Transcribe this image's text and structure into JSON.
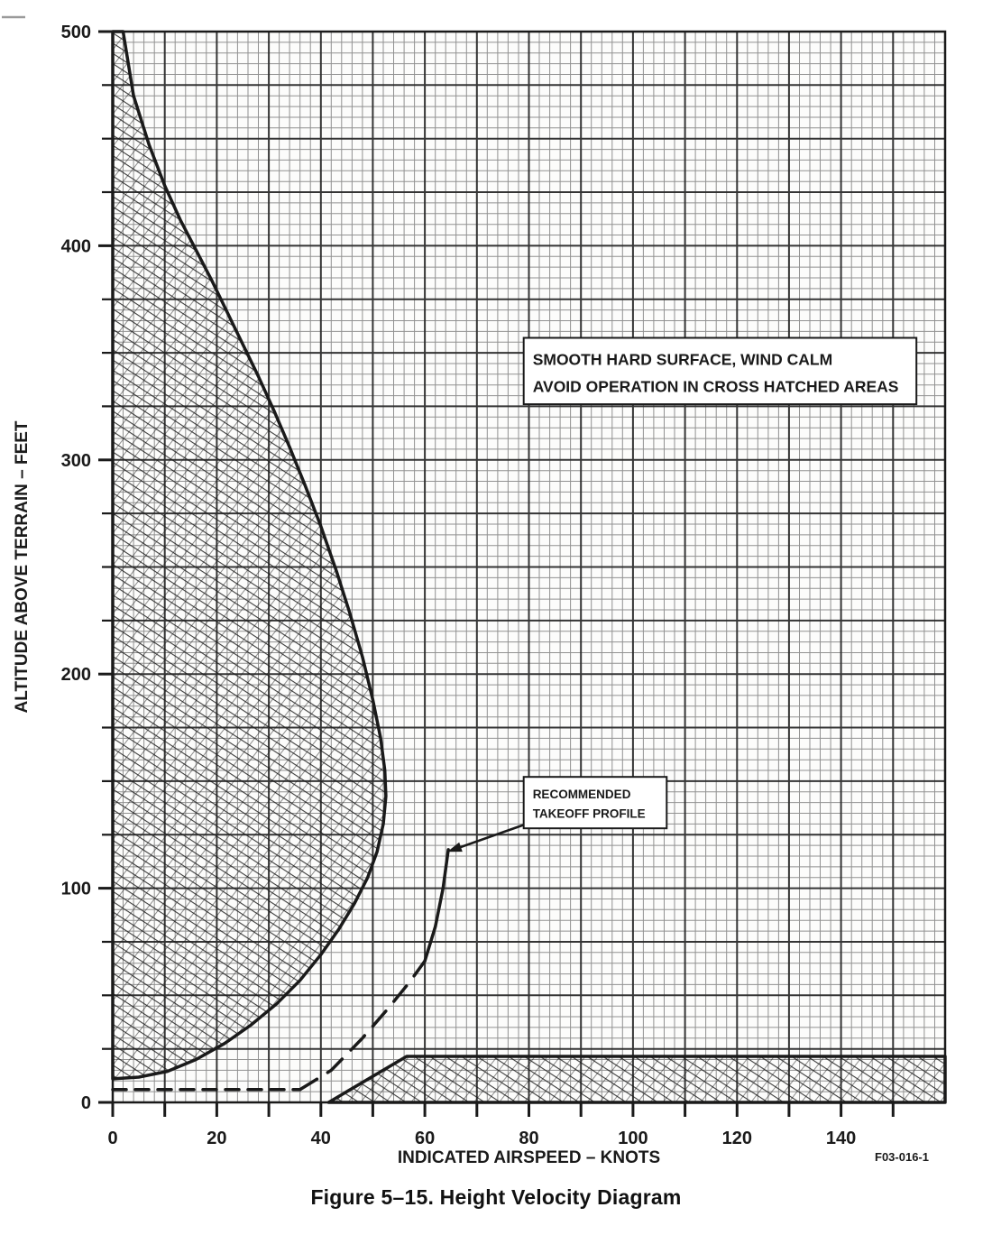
{
  "page": {
    "background": "#ffffff"
  },
  "chart_data": {
    "type": "area",
    "title": "Figure 5–15. Height Velocity Diagram",
    "figure_ref": "F03-016-1",
    "xlabel": "INDICATED AIRSPEED – KNOTS",
    "ylabel": "ALTITUDE ABOVE TERRAIN – FEET",
    "x_range": [
      0,
      160
    ],
    "y_range": [
      0,
      500
    ],
    "x_tick_step": 10,
    "x_label_values": [
      0,
      20,
      40,
      60,
      80,
      100,
      120,
      140
    ],
    "y_tick_step": 25,
    "y_label_values": [
      0,
      100,
      200,
      300,
      400,
      500
    ],
    "grid": {
      "fine_x_kt": 2,
      "fine_y_ft": 5,
      "bold_x_kt": 10,
      "bold_y_ft": 25,
      "grid_on": true
    },
    "legend_position": "none",
    "colors": {
      "ink": "#1a1a1a",
      "grid_fine": "#6e6e6e",
      "grid_bold": "#2a2a2a",
      "background": "#ffffff"
    },
    "avoid_regions": [
      {
        "name": "low-speed-avoid-region",
        "label": "cross-hatched avoid area (low speed / high altitude lobe)",
        "points": [
          [
            0,
            500
          ],
          [
            2,
            500
          ],
          [
            4,
            470
          ],
          [
            7,
            447
          ],
          [
            10,
            428
          ],
          [
            13,
            412
          ],
          [
            16,
            398
          ],
          [
            19,
            384
          ],
          [
            22,
            369
          ],
          [
            25,
            354
          ],
          [
            28,
            339
          ],
          [
            31,
            323
          ],
          [
            34,
            306
          ],
          [
            37,
            288
          ],
          [
            40,
            269
          ],
          [
            43,
            248
          ],
          [
            45.5,
            229
          ],
          [
            48,
            208
          ],
          [
            50,
            188
          ],
          [
            51.5,
            170
          ],
          [
            52.3,
            155
          ],
          [
            52.5,
            143
          ],
          [
            52,
            130
          ],
          [
            50.8,
            117
          ],
          [
            49,
            105
          ],
          [
            46.5,
            93
          ],
          [
            43.5,
            81
          ],
          [
            40,
            69
          ],
          [
            36,
            57
          ],
          [
            31.5,
            46
          ],
          [
            26.5,
            36
          ],
          [
            21.5,
            27.5
          ],
          [
            16,
            20
          ],
          [
            10.5,
            14.5
          ],
          [
            5,
            11.8
          ],
          [
            0,
            11
          ]
        ]
      },
      {
        "name": "high-speed-low-altitude-avoid-region",
        "label": "cross-hatched avoid area (high speed / low altitude strip)",
        "points": [
          [
            41.5,
            0
          ],
          [
            56.5,
            21.5
          ],
          [
            160,
            21.5
          ],
          [
            160,
            0
          ]
        ]
      }
    ],
    "takeoff_profile": {
      "name": "recommended-takeoff-profile",
      "segments": [
        {
          "style": "dashed",
          "points": [
            [
              0,
              6
            ],
            [
              36,
              6
            ]
          ]
        },
        {
          "style": "dashed",
          "points": [
            [
              36,
              6
            ],
            [
              42,
              15
            ],
            [
              48,
              30
            ],
            [
              53,
              44
            ],
            [
              57,
              56
            ],
            [
              60,
              66
            ]
          ]
        },
        {
          "style": "solid",
          "points": [
            [
              60,
              66
            ],
            [
              62,
              82
            ],
            [
              63.5,
              100
            ],
            [
              64.5,
              118
            ]
          ]
        }
      ]
    },
    "annotations": [
      {
        "id": "surface_note",
        "lines": [
          "SMOOTH HARD SURFACE, WIND CALM",
          "AVOID OPERATION IN CROSS HATCHED AREAS"
        ],
        "box_kt": [
          79,
          154.5
        ],
        "box_ft": [
          326,
          357
        ],
        "font_px": 17.5
      },
      {
        "id": "takeoff_note",
        "lines": [
          "RECOMMENDED",
          "TAKEOFF PROFILE"
        ],
        "box_kt": [
          79,
          106.5
        ],
        "box_ft": [
          128,
          152
        ],
        "font_px": 13.5,
        "arrow": {
          "from": [
            79.5,
            130
          ],
          "to": [
            64.3,
            117
          ]
        }
      }
    ]
  }
}
